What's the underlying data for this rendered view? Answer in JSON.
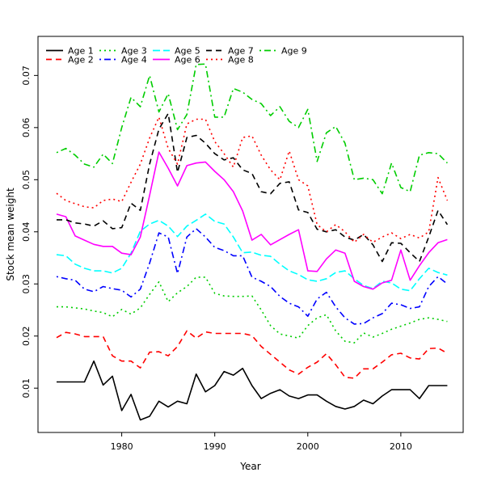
{
  "window": {
    "background": "#ffffff"
  },
  "chart_data": {
    "type": "line",
    "title": "",
    "xlabel": "Year",
    "ylabel": "Stock mean weight",
    "grid": "off",
    "legend_position": "top-left",
    "legend_columns": 5,
    "xlim": [
      1971.0,
      2016.7
    ],
    "ylim": [
      0.0015,
      0.0775
    ],
    "x_ticks": [
      1980,
      1990,
      2000,
      2010
    ],
    "y_ticks": [
      0.01,
      0.02,
      0.03,
      0.04,
      0.05,
      0.06,
      0.07
    ],
    "x": [
      1973,
      1974,
      1975,
      1976,
      1977,
      1978,
      1979,
      1980,
      1981,
      1982,
      1983,
      1984,
      1985,
      1986,
      1987,
      1988,
      1989,
      1990,
      1991,
      1992,
      1993,
      1994,
      1995,
      1996,
      1997,
      1998,
      1999,
      2000,
      2001,
      2002,
      2003,
      2004,
      2005,
      2006,
      2007,
      2008,
      2009,
      2010,
      2011,
      2012,
      2013,
      2014,
      2015
    ],
    "series": [
      {
        "name": "age-1",
        "label": "Age 1",
        "color": "#000000",
        "linestyle": "solid",
        "values": [
          0.0112,
          0.0112,
          0.0112,
          0.0112,
          0.0152,
          0.0106,
          0.0123,
          0.0057,
          0.0088,
          0.0039,
          0.0046,
          0.0075,
          0.0064,
          0.0075,
          0.007,
          0.0127,
          0.0093,
          0.0105,
          0.0132,
          0.0125,
          0.0138,
          0.0105,
          0.008,
          0.009,
          0.0097,
          0.0085,
          0.008,
          0.0087,
          0.0087,
          0.0075,
          0.0065,
          0.006,
          0.0065,
          0.0077,
          0.007,
          0.0085,
          0.0097,
          0.0097,
          0.0097,
          0.008,
          0.0105,
          0.0105,
          0.0105
        ]
      },
      {
        "name": "age-2",
        "label": "Age 2",
        "color": "#FF0000",
        "linestyle": "dashed",
        "values": [
          0.0197,
          0.0207,
          0.0204,
          0.0199,
          0.0199,
          0.0199,
          0.0162,
          0.0152,
          0.0152,
          0.0139,
          0.0169,
          0.017,
          0.0162,
          0.018,
          0.021,
          0.0196,
          0.0208,
          0.0205,
          0.0205,
          0.0205,
          0.0205,
          0.0201,
          0.018,
          0.0165,
          0.015,
          0.0135,
          0.0127,
          0.014,
          0.015,
          0.0166,
          0.0145,
          0.0121,
          0.0119,
          0.0137,
          0.0137,
          0.015,
          0.0164,
          0.0167,
          0.0158,
          0.0156,
          0.0176,
          0.0177,
          0.0167
        ]
      },
      {
        "name": "age-3",
        "label": "Age 3",
        "color": "#00CD00",
        "linestyle": "dotted",
        "values": [
          0.0256,
          0.0256,
          0.0254,
          0.0252,
          0.0248,
          0.0245,
          0.0237,
          0.0251,
          0.0242,
          0.0254,
          0.028,
          0.0304,
          0.0266,
          0.0283,
          0.0295,
          0.0313,
          0.0313,
          0.0282,
          0.0277,
          0.0276,
          0.0276,
          0.0277,
          0.025,
          0.022,
          0.0204,
          0.02,
          0.0196,
          0.022,
          0.0235,
          0.0241,
          0.021,
          0.019,
          0.0187,
          0.0206,
          0.0198,
          0.0205,
          0.0213,
          0.0219,
          0.0225,
          0.0232,
          0.0235,
          0.0232,
          0.0228
        ]
      },
      {
        "name": "age-4",
        "label": "Age 4",
        "color": "#0000FF",
        "linestyle": "dotdash",
        "values": [
          0.0314,
          0.031,
          0.0307,
          0.029,
          0.0285,
          0.0295,
          0.0291,
          0.0288,
          0.0275,
          0.029,
          0.034,
          0.0398,
          0.039,
          0.032,
          0.039,
          0.0406,
          0.039,
          0.037,
          0.0364,
          0.0354,
          0.0354,
          0.0313,
          0.0305,
          0.0295,
          0.0276,
          0.0263,
          0.0256,
          0.0238,
          0.0271,
          0.0284,
          0.0256,
          0.0235,
          0.0223,
          0.0224,
          0.0235,
          0.0243,
          0.0263,
          0.026,
          0.0253,
          0.0256,
          0.0295,
          0.0314,
          0.03
        ]
      },
      {
        "name": "age-5",
        "label": "Age 5",
        "color": "#00FFFF",
        "linestyle": "longdash",
        "values": [
          0.0356,
          0.0354,
          0.0338,
          0.033,
          0.0325,
          0.0325,
          0.0321,
          0.033,
          0.0359,
          0.0401,
          0.0415,
          0.0422,
          0.0411,
          0.0391,
          0.0411,
          0.0422,
          0.0434,
          0.042,
          0.0415,
          0.039,
          0.036,
          0.0361,
          0.0355,
          0.0353,
          0.0338,
          0.0325,
          0.0318,
          0.0308,
          0.0305,
          0.031,
          0.0322,
          0.0325,
          0.031,
          0.0297,
          0.0291,
          0.0305,
          0.0302,
          0.029,
          0.0287,
          0.031,
          0.033,
          0.0322,
          0.0317
        ]
      },
      {
        "name": "age-6",
        "label": "Age 6",
        "color": "#FF00FF",
        "linestyle": "solid",
        "values": [
          0.0434,
          0.0429,
          0.0392,
          0.0384,
          0.0376,
          0.0372,
          0.0372,
          0.0359,
          0.0356,
          0.039,
          0.047,
          0.0553,
          0.0522,
          0.0488,
          0.0527,
          0.0532,
          0.0534,
          0.0516,
          0.05,
          0.0477,
          0.044,
          0.0384,
          0.0395,
          0.0375,
          0.0385,
          0.0395,
          0.0404,
          0.0325,
          0.0324,
          0.0348,
          0.0365,
          0.0359,
          0.0305,
          0.0295,
          0.029,
          0.0302,
          0.0307,
          0.0365,
          0.0307,
          0.0335,
          0.036,
          0.0379,
          0.0385
        ]
      },
      {
        "name": "age-7",
        "label": "Age 7",
        "color": "#000000",
        "linestyle": "dashed",
        "values": [
          0.0423,
          0.0423,
          0.0417,
          0.0415,
          0.0411,
          0.0421,
          0.0406,
          0.0408,
          0.0455,
          0.0441,
          0.053,
          0.0597,
          0.0627,
          0.0514,
          0.0581,
          0.0585,
          0.057,
          0.055,
          0.0538,
          0.0542,
          0.0519,
          0.0512,
          0.0477,
          0.0473,
          0.0493,
          0.0496,
          0.0442,
          0.0437,
          0.0405,
          0.04,
          0.0404,
          0.039,
          0.0384,
          0.0395,
          0.0375,
          0.0343,
          0.0379,
          0.0378,
          0.036,
          0.0343,
          0.039,
          0.0441,
          0.0414
        ]
      },
      {
        "name": "age-8",
        "label": "Age 8",
        "color": "#FF0000",
        "linestyle": "dotted",
        "values": [
          0.0474,
          0.046,
          0.0454,
          0.0448,
          0.0446,
          0.046,
          0.0463,
          0.0458,
          0.0495,
          0.053,
          0.058,
          0.062,
          0.056,
          0.053,
          0.0607,
          0.0616,
          0.0616,
          0.0573,
          0.055,
          0.0524,
          0.0581,
          0.0584,
          0.0547,
          0.0519,
          0.05,
          0.0555,
          0.05,
          0.0488,
          0.0414,
          0.04,
          0.0414,
          0.04,
          0.038,
          0.0395,
          0.038,
          0.039,
          0.0398,
          0.0387,
          0.0395,
          0.0388,
          0.04,
          0.0504,
          0.046
        ]
      },
      {
        "name": "age-9",
        "label": "Age 9",
        "color": "#00CD00",
        "linestyle": "dotdash",
        "values": [
          0.0552,
          0.056,
          0.0547,
          0.053,
          0.0524,
          0.0549,
          0.0531,
          0.06,
          0.0658,
          0.064,
          0.07,
          0.063,
          0.0665,
          0.0596,
          0.0625,
          0.0721,
          0.0722,
          0.062,
          0.062,
          0.0675,
          0.0668,
          0.0654,
          0.0646,
          0.0623,
          0.064,
          0.0612,
          0.06,
          0.0635,
          0.0535,
          0.059,
          0.0602,
          0.057,
          0.05,
          0.0503,
          0.05,
          0.0473,
          0.0532,
          0.0485,
          0.0477,
          0.0547,
          0.0552,
          0.055,
          0.0532
        ]
      }
    ]
  }
}
